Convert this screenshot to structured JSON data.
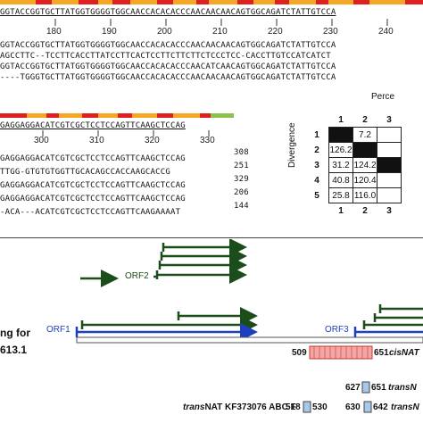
{
  "upper_block": {
    "consensus_colors": [
      "#f5a623",
      "#e02020",
      "#f5a623",
      "#e02020",
      "#8bc34a",
      "#f5a623",
      "#e02020"
    ],
    "lines": [
      "GGTACCGGTGCTTATGGTGGGGTGGCAACCACACACCCAACAACAACAGTGGCAGATCTATTGTCCA",
      "GGTACCGGTGCTTATGGTGGGGTGGCAACCACACACCCAACAACAACAGTGGCAGATCTATTGTCCA",
      "AGCCTTC--TCCTTCACCTTATCCTTCACTCCTTCTTCTTCTCCCTCC-CACCTTGTCCATCATCT",
      "GGTACCGGTGCTTATGGTGGGGTGGCAACCACACACCCAACATCAACAGTGGCAGATCTATTGTCCA",
      "----TGGGTGCTTATGGTGGGGTGGCAACCACACACCCAACAACAACAGTGGCAGATCTATTGTCCA"
    ],
    "ticks": [
      "180",
      "190",
      "200",
      "210",
      "220",
      "230",
      "240"
    ]
  },
  "lower_block": {
    "consensus_colors": [
      "#f5a623",
      "#e02020",
      "#8bc34a",
      "#e02020",
      "#f5a623",
      "#e02020",
      "#8bc34a"
    ],
    "lines": [
      {
        "seq": "GAGGAGGACATCGTCGCTCCTCCAGTTCAAGCTCCAG",
        "num": ""
      },
      {
        "seq": "GAGGAGGACATCGTCGCTCCTCCAGTTCAAGCTCCAG",
        "num": "308"
      },
      {
        "seq": "TTGG-GTGTGTGGTTGCACAGCCACCAAGCACCG",
        "num": "251"
      },
      {
        "seq": "GAGGAGGACATCGTCGCTCCTCCAGTTCAAGCTCCAG",
        "num": "329"
      },
      {
        "seq": "GAGGAGGACATCGTCGCTCCTCCAGTTCAAGCTCCAG",
        "num": "206"
      },
      {
        "seq": "-ACA---ACATCGTCGCTCCTCCAGTTCAAGAAAAT",
        "num": "144"
      }
    ],
    "ticks": [
      "300",
      "310",
      "320",
      "330"
    ]
  },
  "matrix": {
    "top_label": "Perce",
    "side_label": "Divergence",
    "col_headers": [
      "1",
      "2",
      "3"
    ],
    "row_headers": [
      "1",
      "2",
      "3",
      "4",
      "5"
    ],
    "rows": [
      [
        "",
        "7.2",
        ""
      ],
      [
        "126.2",
        "",
        ""
      ],
      [
        "31.2",
        "124.2",
        ""
      ],
      [
        "40.8",
        "120.4",
        ""
      ],
      [
        "25.8",
        "116.0",
        ""
      ]
    ],
    "bottom_headers": [
      "1",
      "2",
      "3"
    ]
  },
  "diagram": {
    "orf2_label": "ORF2",
    "orf1_label": "ORF1",
    "orf3_label": "ORF3",
    "left_text_1": "ng for",
    "left_text_2": "613.1",
    "cisnat_start": "509",
    "cisnat_end": "651",
    "cisnat_label": "cisNAT",
    "transnat_1_start": "627",
    "transnat_1_end": "651",
    "transnat_1_label": "transN",
    "transnat_2_prefix": "trans",
    "transnat_2_text": "NAT KF373076 ABC F",
    "transnat_2_start": "518",
    "transnat_2_end": "530",
    "transnat_3_start": "630",
    "transnat_3_end": "642",
    "transnat_3_label": "transN",
    "colors": {
      "dark_green": "#1a4d1a",
      "blue": "#1f3fbf",
      "pink": "#f4a6a6",
      "pink_border": "#c0392b",
      "light_blue": "#a9c7e8"
    }
  }
}
